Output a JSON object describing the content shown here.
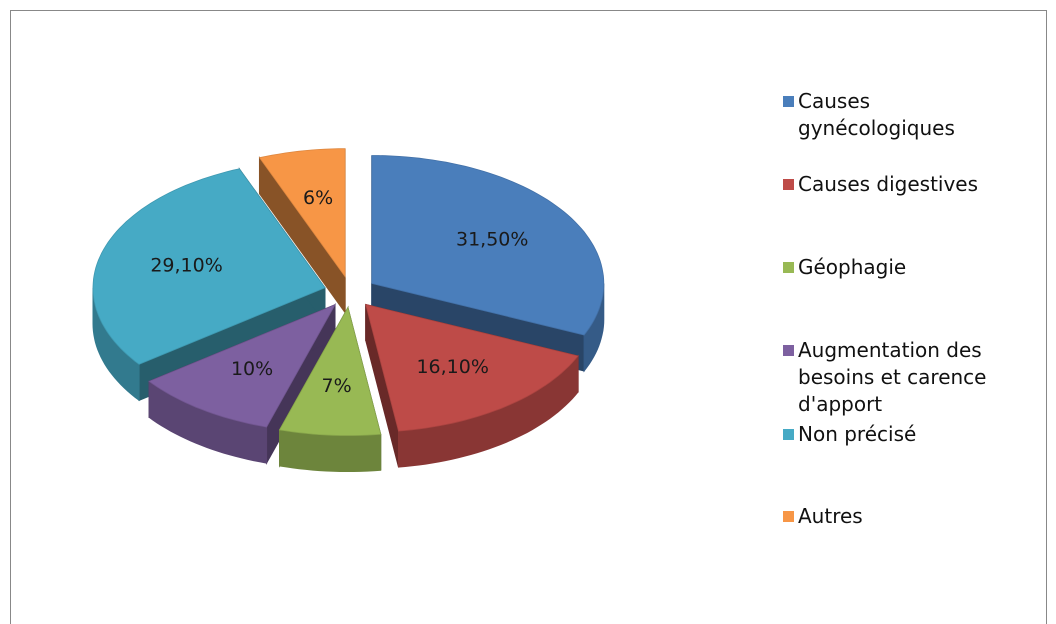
{
  "chart_data": {
    "type": "pie",
    "categories": [
      "Causes gynécologiques",
      "Causes digestives",
      "Géophagie",
      "Augmentation des besoins et carence d'apport",
      "Non précisé",
      "Autres"
    ],
    "values": [
      31.5,
      16.1,
      7,
      10,
      29.1,
      6
    ],
    "value_labels": [
      "31,50%",
      "16,10%",
      "7%",
      "10%",
      "29,10%",
      "6%"
    ],
    "colors": [
      "#4a7ebb",
      "#be4b48",
      "#98b954",
      "#7d60a0",
      "#46aac5",
      "#f79646"
    ],
    "legend": "right"
  }
}
